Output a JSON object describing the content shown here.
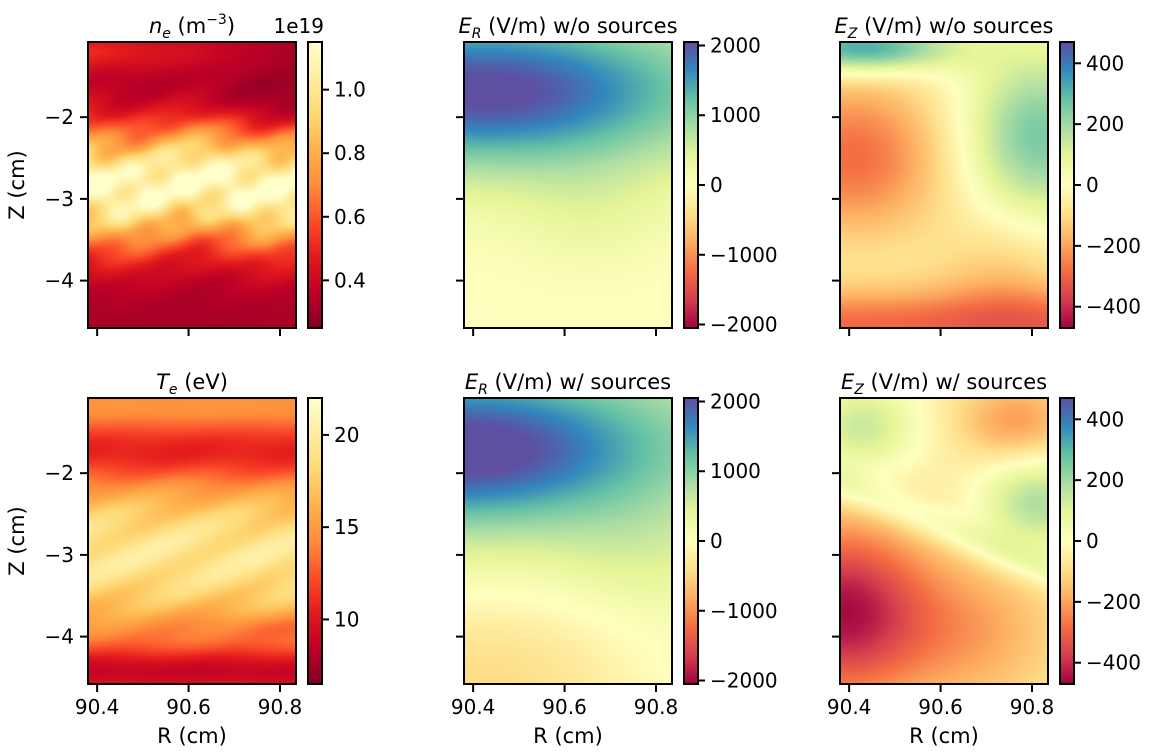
{
  "figure": {
    "title": ""
  },
  "chart_data": [
    {
      "id": "ne",
      "type": "heatmap",
      "row": 0,
      "col": 0,
      "title_sym": "n",
      "title_sub": "e",
      "title_rest": " (m",
      "title_sup": "−3",
      "title_end": ")",
      "offset_text": "1e19",
      "ylabel": "Z (cm)",
      "xlabel": "",
      "x_ticks": [
        90.4,
        90.6,
        90.8
      ],
      "x_tick_labels": [],
      "xlim": [
        90.38,
        90.835
      ],
      "y_ticks": [
        -2,
        -3,
        -4
      ],
      "y_tick_labels": [
        "−2",
        "−3",
        "−4"
      ],
      "ylim": [
        -4.58,
        -1.08
      ],
      "colormap": "YlOrRd_r",
      "colorbar": {
        "min": 0.25,
        "max": 1.15,
        "ticks": [
          0.4,
          0.6,
          0.8,
          1.0
        ],
        "tick_labels": [
          "0.4",
          "0.6",
          "0.8",
          "1.0"
        ]
      },
      "pattern": "density_bands"
    },
    {
      "id": "er_wo",
      "type": "heatmap",
      "row": 0,
      "col": 1,
      "title_sym": "E",
      "title_sub": "R",
      "title_rest": " (V/m) w/o sources",
      "title_sup": "",
      "title_end": "",
      "offset_text": "",
      "ylabel": "",
      "xlabel": "",
      "x_ticks": [
        90.4,
        90.6,
        90.8
      ],
      "x_tick_labels": [],
      "xlim": [
        90.38,
        90.835
      ],
      "y_ticks": [
        -2,
        -3,
        -4
      ],
      "y_tick_labels": [],
      "ylim": [
        -4.58,
        -1.08
      ],
      "colormap": "Spectral",
      "colorbar": {
        "min": -2050,
        "max": 2050,
        "ticks": [
          2000,
          1000,
          0,
          -1000,
          -2000
        ],
        "tick_labels": [
          "2000",
          "1000",
          "0",
          "−1000",
          "−2000"
        ]
      },
      "pattern": "er_wo"
    },
    {
      "id": "ez_wo",
      "type": "heatmap",
      "row": 0,
      "col": 2,
      "title_sym": "E",
      "title_sub": "Z",
      "title_rest": " (V/m) w/o sources",
      "title_sup": "",
      "title_end": "",
      "offset_text": "",
      "ylabel": "",
      "xlabel": "",
      "x_ticks": [
        90.4,
        90.6,
        90.8
      ],
      "x_tick_labels": [],
      "xlim": [
        90.38,
        90.835
      ],
      "y_ticks": [
        -2,
        -3,
        -4
      ],
      "y_tick_labels": [],
      "ylim": [
        -4.58,
        -1.08
      ],
      "colormap": "Spectral",
      "colorbar": {
        "min": -470,
        "max": 470,
        "ticks": [
          400,
          200,
          0,
          -200,
          -400
        ],
        "tick_labels": [
          "400",
          "200",
          "0",
          "−200",
          "−400"
        ]
      },
      "pattern": "ez_wo"
    },
    {
      "id": "te",
      "type": "heatmap",
      "row": 1,
      "col": 0,
      "title_sym": "T",
      "title_sub": "e",
      "title_rest": " (eV)",
      "title_sup": "",
      "title_end": "",
      "offset_text": "",
      "ylabel": "Z (cm)",
      "xlabel": "R (cm)",
      "x_ticks": [
        90.4,
        90.6,
        90.8
      ],
      "x_tick_labels": [
        "90.4",
        "90.6",
        "90.8"
      ],
      "xlim": [
        90.38,
        90.835
      ],
      "y_ticks": [
        -2,
        -3,
        -4
      ],
      "y_tick_labels": [
        "−2",
        "−3",
        "−4"
      ],
      "ylim": [
        -4.58,
        -1.08
      ],
      "colormap": "YlOrRd_r",
      "colorbar": {
        "min": 6.5,
        "max": 22,
        "ticks": [
          10,
          15,
          20
        ],
        "tick_labels": [
          "10",
          "15",
          "20"
        ]
      },
      "pattern": "temperature_bands"
    },
    {
      "id": "er_w",
      "type": "heatmap",
      "row": 1,
      "col": 1,
      "title_sym": "E",
      "title_sub": "R",
      "title_rest": " (V/m) w/ sources",
      "title_sup": "",
      "title_end": "",
      "offset_text": "",
      "ylabel": "",
      "xlabel": "R (cm)",
      "x_ticks": [
        90.4,
        90.6,
        90.8
      ],
      "x_tick_labels": [
        "90.4",
        "90.6",
        "90.8"
      ],
      "xlim": [
        90.38,
        90.835
      ],
      "y_ticks": [
        -2,
        -3,
        -4
      ],
      "y_tick_labels": [],
      "ylim": [
        -4.58,
        -1.08
      ],
      "colormap": "Spectral",
      "colorbar": {
        "min": -2050,
        "max": 2050,
        "ticks": [
          2000,
          1000,
          0,
          -1000,
          -2000
        ],
        "tick_labels": [
          "2000",
          "1000",
          "0",
          "−1000",
          "−2000"
        ]
      },
      "pattern": "er_w"
    },
    {
      "id": "ez_w",
      "type": "heatmap",
      "row": 1,
      "col": 2,
      "title_sym": "E",
      "title_sub": "Z",
      "title_rest": " (V/m) w/ sources",
      "title_sup": "",
      "title_end": "",
      "offset_text": "",
      "ylabel": "",
      "xlabel": "R (cm)",
      "x_ticks": [
        90.4,
        90.6,
        90.8
      ],
      "x_tick_labels": [
        "90.4",
        "90.6",
        "90.8"
      ],
      "xlim": [
        90.38,
        90.835
      ],
      "y_ticks": [
        -2,
        -3,
        -4
      ],
      "y_tick_labels": [],
      "ylim": [
        -4.58,
        -1.08
      ],
      "colormap": "Spectral",
      "colorbar": {
        "min": -470,
        "max": 470,
        "ticks": [
          400,
          200,
          0,
          -200,
          -400
        ],
        "tick_labels": [
          "400",
          "200",
          "0",
          "−200",
          "−400"
        ]
      },
      "pattern": "ez_w"
    }
  ]
}
